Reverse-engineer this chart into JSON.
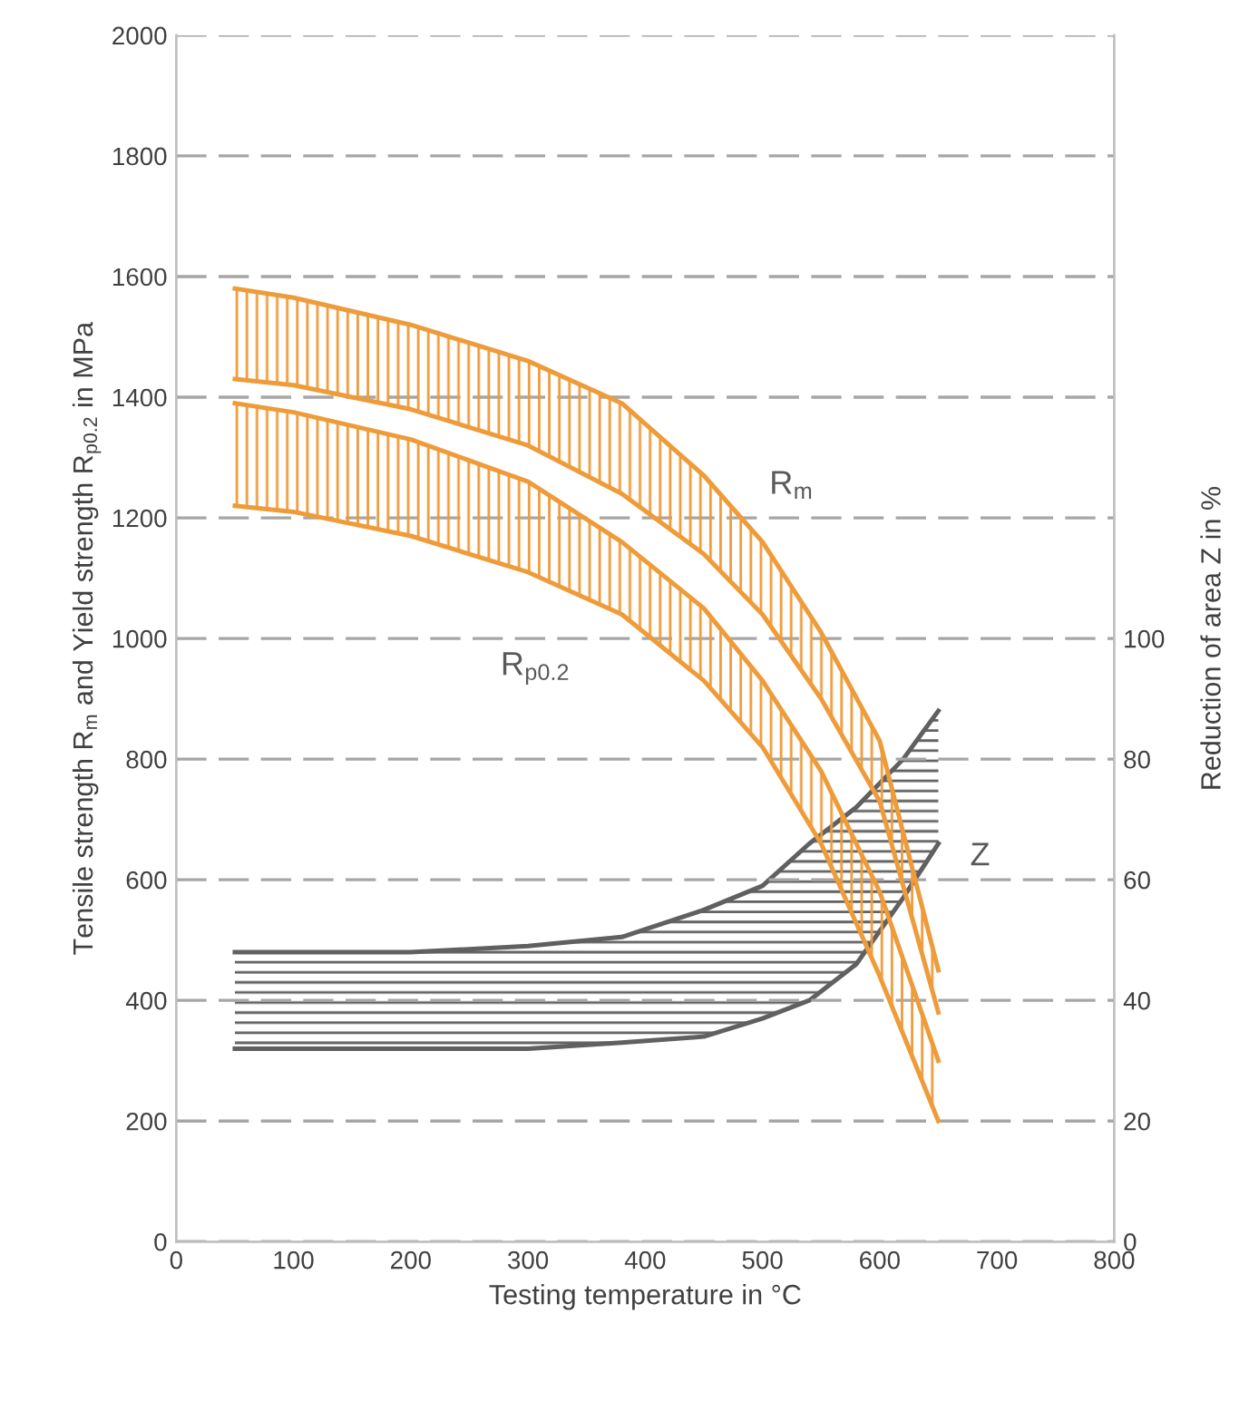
{
  "chart_data": {
    "type": "line",
    "xlabel": "Testing temperature in °C",
    "ylabel": "Tensile strength R$_{m}$ and Yield strength R$_{p0.2}$ in MPa",
    "y2label": "Reduction of area Z in %",
    "xlim": [
      0,
      800
    ],
    "xticks": [
      0,
      100,
      200,
      300,
      400,
      500,
      600,
      700,
      800
    ],
    "ylim": [
      0,
      2000
    ],
    "yticks": [
      0,
      200,
      400,
      600,
      800,
      1000,
      1200,
      1400,
      1600,
      1800,
      2000
    ],
    "y2lim": [
      0,
      200
    ],
    "y2ticks": [
      0,
      20,
      40,
      60,
      80,
      100
    ],
    "grid": "y",
    "legend": false,
    "line_style": "solid",
    "marker": "none",
    "series": [
      {
        "color": "#ee9b3a",
        "x": [
          50,
          100,
          200,
          300,
          380,
          450,
          500,
          550,
          600,
          650
        ],
        "values": [
          1580,
          1565,
          1520,
          1460,
          1390,
          1270,
          1160,
          1010,
          830,
          450
        ]
      },
      {
        "color": "#ee9b3a",
        "x": [
          50,
          100,
          200,
          300,
          380,
          450,
          500,
          550,
          600,
          650
        ],
        "values": [
          1430,
          1420,
          1380,
          1320,
          1240,
          1140,
          1040,
          900,
          730,
          380
        ]
      },
      {
        "color": "#ee9b3a",
        "x": [
          50,
          100,
          200,
          300,
          380,
          450,
          500,
          550,
          600,
          650
        ],
        "values": [
          1390,
          1375,
          1330,
          1260,
          1160,
          1050,
          930,
          780,
          580,
          300
        ]
      },
      {
        "color": "#ee9b3a",
        "x": [
          50,
          100,
          200,
          300,
          380,
          450,
          500,
          550,
          600,
          650
        ],
        "values": [
          1220,
          1210,
          1170,
          1110,
          1040,
          930,
          820,
          660,
          440,
          200
        ]
      },
      {
        "color": "#606060",
        "axis": "y2",
        "x": [
          50,
          200,
          300,
          380,
          450,
          500,
          540,
          580,
          620,
          650
        ],
        "values": [
          48,
          48,
          49,
          50.5,
          55,
          59,
          66,
          72,
          80,
          88
        ]
      },
      {
        "color": "#606060",
        "axis": "y2",
        "x": [
          50,
          200,
          300,
          380,
          450,
          500,
          540,
          580,
          620,
          650
        ],
        "values": [
          32,
          32,
          32,
          33,
          34,
          37,
          40,
          46,
          57,
          66
        ]
      }
    ],
    "annotations": [
      "R$_{m}$",
      "R$_{p0.2}$",
      "Z"
    ]
  }
}
